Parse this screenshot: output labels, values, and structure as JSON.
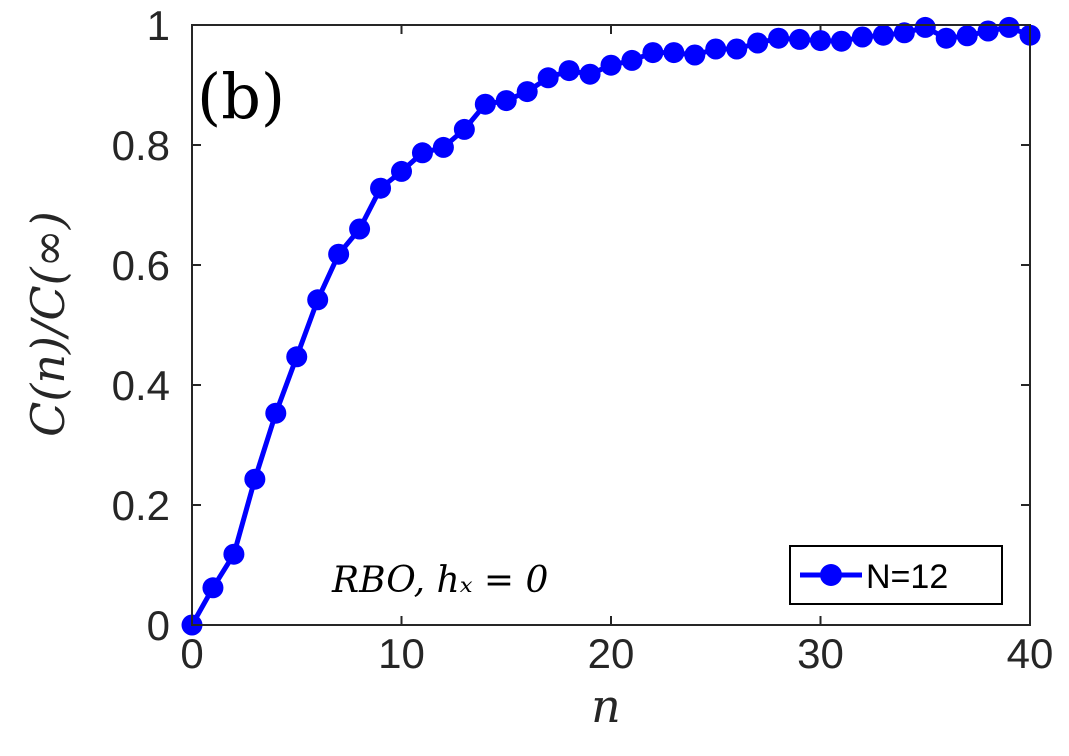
{
  "chart_data": {
    "type": "line",
    "panel_label": "(b)",
    "xlabel": "n",
    "ylabel": "C(n)/C(∞)",
    "xlim": [
      0,
      40
    ],
    "ylim": [
      0,
      1
    ],
    "x_ticks": [
      0,
      10,
      20,
      30,
      40
    ],
    "y_ticks": [
      0,
      0.2,
      0.4,
      0.6,
      0.8,
      1
    ],
    "x_tick_labels": [
      "0",
      "10",
      "20",
      "30",
      "40"
    ],
    "y_tick_labels": [
      "0",
      "0.2",
      "0.4",
      "0.6",
      "0.8",
      "1"
    ],
    "annotation": "RBO, hₓ = 0",
    "legend_position": "bottom-right",
    "series": [
      {
        "name": "N=12",
        "color": "#0000ff",
        "marker": "circle",
        "x": [
          0,
          1,
          2,
          3,
          4,
          5,
          6,
          7,
          8,
          9,
          10,
          11,
          12,
          13,
          14,
          15,
          16,
          17,
          18,
          19,
          20,
          21,
          22,
          23,
          24,
          25,
          26,
          27,
          28,
          29,
          30,
          31,
          32,
          33,
          34,
          35,
          36,
          37,
          38,
          39,
          40
        ],
        "values": [
          0.0,
          0.062,
          0.118,
          0.243,
          0.353,
          0.447,
          0.542,
          0.618,
          0.66,
          0.728,
          0.756,
          0.787,
          0.796,
          0.826,
          0.868,
          0.874,
          0.889,
          0.912,
          0.924,
          0.918,
          0.933,
          0.941,
          0.954,
          0.954,
          0.95,
          0.96,
          0.96,
          0.97,
          0.978,
          0.976,
          0.974,
          0.973,
          0.98,
          0.983,
          0.987,
          0.996,
          0.978,
          0.982,
          0.99,
          0.996,
          0.983
        ]
      }
    ]
  }
}
